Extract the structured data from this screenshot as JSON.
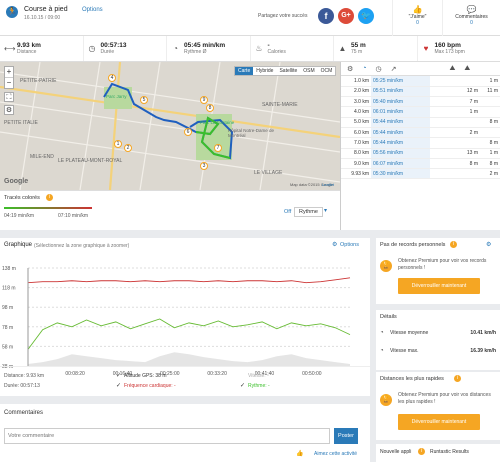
{
  "header": {
    "title": "Course à pied",
    "options": "Options",
    "datetime": "16.10.15 / 09:00",
    "share_text": "Partagez votre succès",
    "jaime_label": "\"J'aime\"",
    "jaime_count": "0",
    "comments_label": "Commentaires",
    "comments_count": "0"
  },
  "stats": [
    {
      "value": "9.93 km",
      "label": "Distance",
      "icon": "distance-icon"
    },
    {
      "value": "00:57:13",
      "label": "Durée",
      "icon": "clock-icon"
    },
    {
      "value": "05:45 min/km",
      "label": "Rythme Ø",
      "icon": "pace-icon"
    },
    {
      "value": "-",
      "label": "Calories",
      "icon": "flame-icon"
    },
    {
      "value": "55 m",
      "label": "75 m",
      "icon": "elevation-icon"
    },
    {
      "value": "160 bpm",
      "label": "Max 173 bpm",
      "icon": "heart-icon"
    }
  ],
  "map": {
    "tabs": [
      "Carte",
      "Hybride",
      "Satellite",
      "OSM",
      "OCM"
    ],
    "labels": [
      "PETITE-PATRIE",
      "PETITE ITALIE",
      "MILE-END",
      "LE PLATEAU-MONT-ROYAL",
      "SAINTE-MARIE",
      "Hôpital Notre-Dame de Montréal",
      "LE VILLAGE",
      "Parc Jarry",
      "Parc La Fontaine"
    ],
    "attribution": "Map data ©2015 Google",
    "leaflet": "Leaflet",
    "google": "Google",
    "markers": [
      "1",
      "2",
      "3",
      "4",
      "5",
      "6",
      "7",
      "8",
      "9"
    ],
    "zoom_in": "+",
    "zoom_out": "−"
  },
  "colors": {
    "title": "Tracés colorés",
    "min_label": "04:19 min/km",
    "max_label": "07:10 min/km",
    "off": "Off",
    "mode": "Rythme"
  },
  "splits": {
    "rows": [
      {
        "km": "1.0 km",
        "pace": "05:25 min/km",
        "elev": "",
        "hr": "1 m"
      },
      {
        "km": "2.0 km",
        "pace": "05:51 min/km",
        "elev": "12 m",
        "hr": "11 m"
      },
      {
        "km": "3.0 km",
        "pace": "05:40 min/km",
        "elev": "7 m",
        "hr": ""
      },
      {
        "km": "4.0 km",
        "pace": "06:01 min/km",
        "elev": "1 m",
        "hr": ""
      },
      {
        "km": "5.0 km",
        "pace": "05:44 min/km",
        "elev": "",
        "hr": "8 m"
      },
      {
        "km": "6.0 km",
        "pace": "05:44 min/km",
        "elev": "2 m",
        "hr": ""
      },
      {
        "km": "7.0 km",
        "pace": "05:44 min/km",
        "elev": "",
        "hr": "8 m"
      },
      {
        "km": "8.0 km",
        "pace": "05:56 min/km",
        "elev": "13 m",
        "hr": "1 m"
      },
      {
        "km": "9.0 km",
        "pace": "06:07 min/km",
        "elev": "8 m",
        "hr": "8 m"
      },
      {
        "km": "9.93 km",
        "pace": "05:30 min/km",
        "elev": "",
        "hr": "2 m"
      }
    ]
  },
  "graph": {
    "title": "Graphique",
    "hint": "(Sélectionnez la zone graphique à zoomer)",
    "options": "Options",
    "y_ticks": [
      "138 m",
      "118 m",
      "98 m",
      "78 m",
      "58 m",
      "38 m"
    ],
    "x_ticks": [
      "00:08:20",
      "00:16:40",
      "00:25:00",
      "00:33:20",
      "00:41:40",
      "00:50:00"
    ],
    "distance": "Distance: 9.93 km",
    "duree": "Durée: 00:57:13",
    "altitude": "Altitude GPS: 38 m",
    "frequence": "Fréquence cardiaque: -",
    "vitesse": "Vitesse: -",
    "rythme": "Rythme: -"
  },
  "chart_data": {
    "type": "line",
    "x_unit": "time",
    "y_label": "",
    "series": [
      {
        "name": "Fréquence cardiaque",
        "color": "#cc3333",
        "values": [
          123,
          124,
          124,
          125,
          124,
          125,
          125,
          124,
          125,
          124,
          125,
          125,
          124,
          125,
          124,
          125,
          125,
          124,
          125,
          123,
          124,
          126,
          128
        ]
      },
      {
        "name": "Rythme",
        "color": "#66bb33",
        "values": [
          55,
          75,
          82,
          78,
          85,
          79,
          83,
          76,
          81,
          86,
          77,
          82,
          79,
          84,
          78,
          80,
          83,
          76,
          82,
          79,
          81,
          77,
          70
        ]
      },
      {
        "name": "Altitude GPS",
        "color": "#cccccc",
        "values": [
          40,
          42,
          45,
          50,
          48,
          46,
          44,
          43,
          42,
          48,
          52,
          50,
          47,
          45,
          43,
          42,
          44,
          48,
          50,
          46,
          44,
          42,
          40
        ]
      }
    ],
    "ylim": [
      38,
      138
    ]
  },
  "records": {
    "title": "Pas de records personnels",
    "premium": "Obtenez Premium pour voir vos records personnels !",
    "button": "Déverrouiller maintenant"
  },
  "details": {
    "title": "Détails",
    "rows": [
      {
        "label": "Vitesse moyenne",
        "value": "10.41 km/h"
      },
      {
        "label": "Vitesse max.",
        "value": "16.39 km/h"
      }
    ]
  },
  "fastest": {
    "title": "Distances les plus rapides",
    "premium": "Obtenez Premium pour voir vos distances les plus rapides !",
    "button": "Déverrouiller maintenant"
  },
  "comments": {
    "title": "Commentaires",
    "placeholder": "Votre commentaire",
    "send": "Poster",
    "like": "Aimez cette activité"
  },
  "app": {
    "label": "Nouvelle appli",
    "name": "Runtastic Results"
  }
}
